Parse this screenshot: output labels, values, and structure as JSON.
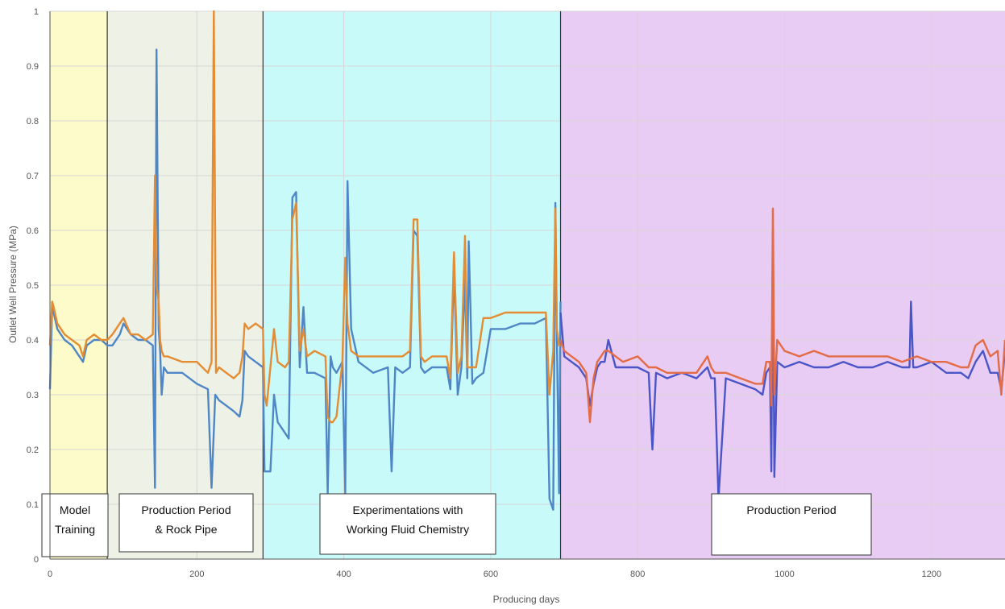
{
  "chart_data": {
    "type": "line",
    "title": "",
    "xlabel": "Producing days",
    "ylabel": "Outlet Well Pressure (MPa)",
    "xlim": [
      0,
      1300
    ],
    "ylim": [
      0,
      1
    ],
    "x_ticks": [
      0,
      200,
      400,
      600,
      800,
      1000,
      1200
    ],
    "y_ticks": [
      0,
      0.1,
      0.2,
      0.3,
      0.4,
      0.5,
      0.6,
      0.7,
      0.8,
      0.9,
      1
    ],
    "grid": true,
    "regions": [
      {
        "label": [
          "Model",
          "Training"
        ],
        "x0": 0,
        "x1": 78,
        "color": "#fdfbc9"
      },
      {
        "label": [
          "Production Period",
          "& Rock Pipe"
        ],
        "x0": 78,
        "x1": 290,
        "color": "#eef2e6"
      },
      {
        "label": [
          "Experimentations with",
          "Working Fluid Chemistry"
        ],
        "x0": 290,
        "x1": 695,
        "color": "#c9fafa"
      },
      {
        "label": [
          "Production Period"
        ],
        "x0": 695,
        "x1": 1300,
        "color": "#e9ccf3"
      }
    ],
    "series": [
      {
        "color": "#4f86c6",
        "x": [
          0,
          3,
          5,
          10,
          20,
          30,
          40,
          45,
          50,
          60,
          70,
          78,
          85,
          95,
          100,
          110,
          120,
          130,
          140,
          143,
          145,
          148,
          150,
          152,
          155,
          160,
          180,
          200,
          215,
          220,
          225,
          230,
          240,
          250,
          258,
          262,
          265,
          270,
          280,
          290,
          292,
          295,
          300,
          305,
          310,
          320,
          325,
          330,
          335,
          340,
          345,
          350,
          360,
          375,
          378,
          382,
          385,
          390,
          398,
          402,
          405,
          410,
          420,
          440,
          460,
          465,
          470,
          480,
          490,
          495,
          500,
          505,
          510,
          520,
          540,
          545,
          550,
          555,
          560,
          565,
          568,
          570,
          575,
          580,
          590,
          600,
          620,
          640,
          660,
          675,
          680,
          685,
          688,
          690,
          693,
          695
        ],
        "y": [
          0.31,
          0.46,
          0.45,
          0.42,
          0.4,
          0.39,
          0.37,
          0.36,
          0.39,
          0.4,
          0.4,
          0.39,
          0.39,
          0.41,
          0.43,
          0.41,
          0.4,
          0.4,
          0.39,
          0.13,
          0.93,
          0.42,
          0.38,
          0.3,
          0.35,
          0.34,
          0.34,
          0.32,
          0.31,
          0.13,
          0.3,
          0.29,
          0.28,
          0.27,
          0.26,
          0.29,
          0.38,
          0.37,
          0.36,
          0.35,
          0.16,
          0.16,
          0.16,
          0.3,
          0.25,
          0.23,
          0.22,
          0.66,
          0.67,
          0.35,
          0.46,
          0.34,
          0.34,
          0.33,
          0.12,
          0.37,
          0.35,
          0.34,
          0.36,
          0.12,
          0.69,
          0.42,
          0.36,
          0.34,
          0.35,
          0.16,
          0.35,
          0.34,
          0.35,
          0.6,
          0.59,
          0.35,
          0.34,
          0.35,
          0.35,
          0.31,
          0.53,
          0.3,
          0.35,
          0.51,
          0.33,
          0.58,
          0.32,
          0.33,
          0.34,
          0.42,
          0.42,
          0.43,
          0.43,
          0.44,
          0.11,
          0.09,
          0.65,
          0.4,
          0.12,
          0.47
        ]
      },
      {
        "color": "#e48c33",
        "x": [
          0,
          3,
          5,
          10,
          20,
          30,
          40,
          45,
          50,
          60,
          70,
          78,
          85,
          95,
          100,
          110,
          120,
          130,
          140,
          143,
          145,
          148,
          150,
          152,
          155,
          160,
          180,
          200,
          215,
          220,
          223,
          226,
          230,
          240,
          250,
          258,
          262,
          265,
          270,
          280,
          290,
          292,
          295,
          300,
          305,
          310,
          320,
          325,
          330,
          335,
          340,
          345,
          350,
          360,
          375,
          378,
          382,
          385,
          390,
          398,
          402,
          405,
          410,
          420,
          440,
          460,
          470,
          480,
          490,
          495,
          500,
          505,
          510,
          520,
          540,
          545,
          550,
          555,
          560,
          565,
          568,
          570,
          575,
          580,
          590,
          600,
          620,
          640,
          660,
          675,
          680,
          685,
          688,
          690,
          693,
          695
        ],
        "y": [
          0.39,
          0.47,
          0.46,
          0.43,
          0.41,
          0.4,
          0.39,
          0.37,
          0.4,
          0.41,
          0.4,
          0.4,
          0.41,
          0.43,
          0.44,
          0.41,
          0.41,
          0.4,
          0.41,
          0.7,
          0.5,
          0.47,
          0.4,
          0.38,
          0.37,
          0.37,
          0.36,
          0.36,
          0.34,
          0.36,
          1.0,
          0.34,
          0.35,
          0.34,
          0.33,
          0.34,
          0.37,
          0.43,
          0.42,
          0.43,
          0.42,
          0.3,
          0.28,
          0.35,
          0.42,
          0.36,
          0.35,
          0.36,
          0.62,
          0.65,
          0.38,
          0.42,
          0.37,
          0.38,
          0.37,
          0.26,
          0.25,
          0.25,
          0.26,
          0.36,
          0.55,
          0.43,
          0.38,
          0.37,
          0.37,
          0.37,
          0.37,
          0.37,
          0.38,
          0.62,
          0.62,
          0.37,
          0.36,
          0.37,
          0.37,
          0.33,
          0.56,
          0.34,
          0.37,
          0.59,
          0.35,
          0.35,
          0.35,
          0.35,
          0.44,
          0.44,
          0.45,
          0.45,
          0.45,
          0.45,
          0.3,
          0.38,
          0.64,
          0.42,
          0.39,
          0.39
        ]
      },
      {
        "color": "#4a55c8",
        "x": [
          695,
          700,
          710,
          720,
          730,
          735,
          740,
          745,
          750,
          755,
          760,
          770,
          780,
          800,
          815,
          820,
          825,
          840,
          860,
          880,
          895,
          900,
          905,
          910,
          920,
          940,
          960,
          970,
          975,
          980,
          982,
          984,
          986,
          990,
          1000,
          1020,
          1040,
          1060,
          1080,
          1100,
          1120,
          1140,
          1160,
          1170,
          1172,
          1175,
          1180,
          1200,
          1220,
          1240,
          1250,
          1260,
          1270,
          1280,
          1290,
          1295,
          1300
        ],
        "y": [
          0.45,
          0.37,
          0.36,
          0.35,
          0.33,
          0.28,
          0.32,
          0.35,
          0.36,
          0.36,
          0.4,
          0.35,
          0.35,
          0.35,
          0.34,
          0.2,
          0.34,
          0.33,
          0.34,
          0.33,
          0.35,
          0.33,
          0.33,
          0.11,
          0.33,
          0.32,
          0.31,
          0.3,
          0.34,
          0.35,
          0.16,
          0.6,
          0.15,
          0.36,
          0.35,
          0.36,
          0.35,
          0.35,
          0.36,
          0.35,
          0.35,
          0.36,
          0.35,
          0.35,
          0.47,
          0.35,
          0.35,
          0.36,
          0.34,
          0.34,
          0.33,
          0.36,
          0.38,
          0.34,
          0.34,
          0.31,
          0.38
        ]
      },
      {
        "color": "#e36b45",
        "x": [
          695,
          700,
          710,
          720,
          730,
          735,
          740,
          745,
          750,
          755,
          760,
          770,
          780,
          800,
          815,
          820,
          825,
          840,
          860,
          880,
          895,
          900,
          905,
          920,
          940,
          960,
          970,
          975,
          980,
          982,
          984,
          986,
          990,
          1000,
          1020,
          1040,
          1060,
          1080,
          1100,
          1120,
          1140,
          1160,
          1180,
          1200,
          1220,
          1240,
          1250,
          1260,
          1270,
          1280,
          1290,
          1295,
          1300
        ],
        "y": [
          0.4,
          0.38,
          0.37,
          0.36,
          0.34,
          0.25,
          0.33,
          0.36,
          0.37,
          0.38,
          0.38,
          0.37,
          0.36,
          0.37,
          0.35,
          0.35,
          0.35,
          0.34,
          0.34,
          0.34,
          0.37,
          0.35,
          0.34,
          0.34,
          0.33,
          0.32,
          0.32,
          0.36,
          0.36,
          0.28,
          0.64,
          0.3,
          0.4,
          0.38,
          0.37,
          0.38,
          0.37,
          0.37,
          0.37,
          0.37,
          0.37,
          0.36,
          0.37,
          0.36,
          0.36,
          0.35,
          0.35,
          0.39,
          0.4,
          0.37,
          0.38,
          0.3,
          0.4
        ]
      }
    ]
  }
}
